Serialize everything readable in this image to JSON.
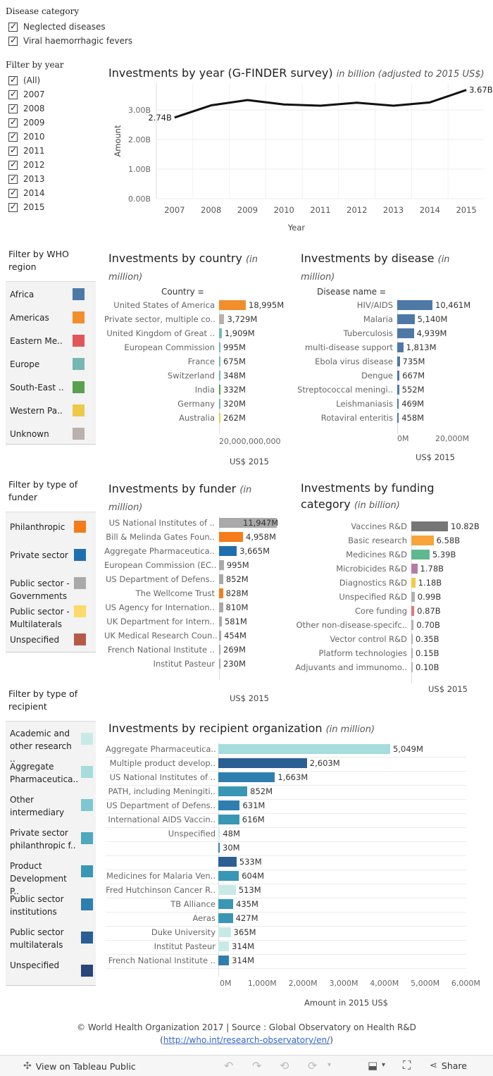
{
  "filters": {
    "disease_category": {
      "title": "Disease category",
      "items": [
        "Neglected diseases",
        "Viral haemorrhagic fevers"
      ]
    },
    "year": {
      "title": "Filter by year",
      "items": [
        "(All)",
        "2007",
        "2008",
        "2009",
        "2010",
        "2011",
        "2012",
        "2013",
        "2014",
        "2015"
      ]
    },
    "who_region": {
      "title": "Filter by WHO region",
      "items": [
        {
          "label": "Africa",
          "color": "#4e79a7"
        },
        {
          "label": "Americas",
          "color": "#f28e2b"
        },
        {
          "label": "Eastern Me..",
          "color": "#e15759"
        },
        {
          "label": "Europe",
          "color": "#76b7b2"
        },
        {
          "label": "South-East ..",
          "color": "#59a14f"
        },
        {
          "label": "Western Pa..",
          "color": "#edc948"
        },
        {
          "label": "Unknown",
          "color": "#bab0ac"
        }
      ]
    },
    "funder_type": {
      "title": "Filter by type of funder",
      "items": [
        {
          "label": "Philanthropic",
          "color": "#f47c1a"
        },
        {
          "label": "Private sector",
          "color": "#1f6fad"
        },
        {
          "label": "Public sector - Governments",
          "color": "#a9a9a9"
        },
        {
          "label": "Public sector - Multilaterals",
          "color": "#fbd96a"
        },
        {
          "label": "Unspecified",
          "color": "#b55a47"
        }
      ]
    },
    "recipient_type": {
      "title": "Filter by type of recipient",
      "items": [
        {
          "label": "Academic and other research ..",
          "color": "#c8eae6"
        },
        {
          "label": "Aggregate Pharmaceutica..",
          "color": "#a6dcdc"
        },
        {
          "label": "Other intermediary",
          "color": "#7fc6d0"
        },
        {
          "label": "Private sector philanthropic f..",
          "color": "#4fa8be"
        },
        {
          "label": "Product Development P..",
          "color": "#3a96b5"
        },
        {
          "label": "Public sector institutions",
          "color": "#2f7fae"
        },
        {
          "label": "Public sector multilaterals",
          "color": "#2a5f95"
        },
        {
          "label": "Unspecified",
          "color": "#28467a"
        }
      ]
    }
  },
  "charts": {
    "by_year": {
      "title": "Investments by year (G-FINDER survey)",
      "subtitle": "in billion (adjusted to 2015 US$)",
      "first_label": "2.74B",
      "last_label": "3.67B",
      "yticks": [
        "0.00B",
        "1.00B",
        "2.00B",
        "3.00B"
      ],
      "ylabel": "Amount",
      "xlabel": "Year"
    },
    "by_country": {
      "title": "Investments by country",
      "subtitle": "(in million)",
      "header": "Country",
      "axis_tick": "20,000,000,000",
      "axis_label": "US$ 2015"
    },
    "by_disease": {
      "title": "Investments by disease",
      "subtitle": "(in million)",
      "header": "Disease name",
      "axis_ticks": [
        "0M",
        "20,000M"
      ],
      "axis_label": "US$ 2015"
    },
    "by_funder": {
      "title": "Investments by funder",
      "subtitle": "(in million)",
      "axis_label": "US$ 2015"
    },
    "by_funding_category": {
      "title": "Investments by funding category",
      "subtitle": "(in billion)",
      "axis_label": "US$ 2015"
    },
    "by_recipient": {
      "title": "Investments by recipient organization",
      "subtitle": "(in million)",
      "axis_ticks": [
        "0M",
        "1,000M",
        "2,000M",
        "3,000M",
        "4,000M",
        "5,000M",
        "6,000M"
      ],
      "axis_label": "Amount in 2015 US$"
    }
  },
  "chart_data": [
    {
      "type": "line",
      "title": "Investments by year (G-FINDER survey)",
      "xlabel": "Year",
      "ylabel": "Amount",
      "x": [
        "2007",
        "2008",
        "2009",
        "2010",
        "2011",
        "2012",
        "2013",
        "2014",
        "2015"
      ],
      "values": [
        2.74,
        3.15,
        3.33,
        3.18,
        3.14,
        3.24,
        3.14,
        3.25,
        3.67
      ],
      "ylim": [
        0,
        3.9
      ]
    },
    {
      "type": "bar",
      "title": "Investments by country",
      "categories": [
        "United States of America",
        "Private sector, multiple co..",
        "United Kingdom of Great ..",
        "European Commission",
        "France",
        "Switzerland",
        "India",
        "Germany",
        "Australia"
      ],
      "values": [
        18995,
        3729,
        1909,
        995,
        675,
        348,
        332,
        320,
        262
      ],
      "labels": [
        "18,995M",
        "3,729M",
        "1,909M",
        "995M",
        "675M",
        "348M",
        "332M",
        "320M",
        "262M"
      ],
      "colors": [
        "#f28e2b",
        "#bab0ac",
        "#76b7b2",
        "#76b7b2",
        "#76b7b2",
        "#76b7b2",
        "#59a14f",
        "#76b7b2",
        "#edc948"
      ]
    },
    {
      "type": "bar",
      "title": "Investments by disease",
      "categories": [
        "HIV/AIDS",
        "Malaria",
        "Tuberculosis",
        "multi-disease support",
        "Ebola virus disease",
        "Dengue",
        "Streptococcal meningi..",
        "Leishmaniasis",
        "Rotaviral enteritis"
      ],
      "values": [
        10461,
        5140,
        4939,
        1813,
        735,
        667,
        552,
        469,
        458
      ],
      "labels": [
        "10,461M",
        "5,140M",
        "4,939M",
        "1,813M",
        "735M",
        "667M",
        "552M",
        "469M",
        "458M"
      ]
    },
    {
      "type": "bar",
      "title": "Investments by funder",
      "categories": [
        "US National Institutes of ..",
        "Bill & Melinda Gates Foun..",
        "Aggregate Pharmaceutica..",
        "European Commission (EC..",
        "US Department of Defens..",
        "The Wellcome Trust",
        "US Agency for Internation..",
        "UK Department for Intern..",
        "UK Medical Research Coun..",
        "French National Institute ..",
        "Institut Pasteur"
      ],
      "values": [
        11947,
        4958,
        3665,
        995,
        852,
        828,
        810,
        581,
        454,
        269,
        230
      ],
      "labels": [
        "11,947M",
        "4,958M",
        "3,665M",
        "995M",
        "852M",
        "828M",
        "810M",
        "581M",
        "454M",
        "269M",
        "230M"
      ],
      "colors": [
        "#a9a9a9",
        "#f47c1a",
        "#1f6fad",
        "#a9a9a9",
        "#a9a9a9",
        "#f47c1a",
        "#a9a9a9",
        "#a9a9a9",
        "#a9a9a9",
        "#a9a9a9",
        "#a9a9a9"
      ]
    },
    {
      "type": "bar",
      "title": "Investments by funding category",
      "categories": [
        "Vaccines R&D",
        "Basic research",
        "Medicines R&D",
        "Microbicides R&D",
        "Diagnostics R&D",
        "Unspecified R&D",
        "Core funding",
        "Other non-disease-specifc..",
        "Vector control R&D",
        "Platform technologies",
        "Adjuvants and immunomo.."
      ],
      "values": [
        10.82,
        6.58,
        5.39,
        1.78,
        1.18,
        0.99,
        0.87,
        0.7,
        0.35,
        0.15,
        0.1
      ],
      "labels": [
        "10.82B",
        "6.58B",
        "5.39B",
        "1.78B",
        "1.18B",
        "0.99B",
        "0.87B",
        "0.70B",
        "0.35B",
        "0.15B",
        "0.10B"
      ],
      "colors": [
        "#767676",
        "#f9a43a",
        "#5fb88f",
        "#b77aa6",
        "#f3c93f",
        "#b0b0b0",
        "#e47478",
        "#b0b0b0",
        "#b0b0b0",
        "#b0b0b0",
        "#b0b0b0"
      ]
    },
    {
      "type": "bar",
      "title": "Investments by recipient organization",
      "xlabel": "Amount in 2015 US$",
      "categories": [
        "Aggregate Pharmaceutica..",
        "Multiple product develop..",
        "US National Institutes of ..",
        "PATH, including Meningiti..",
        "US Department of Defens..",
        "International AIDS Vaccin..",
        "Unspecified",
        "",
        "",
        "Medicines for Malaria Ven..",
        "Fred Hutchinson Cancer R..",
        "TB Alliance",
        "Aeras",
        "Duke University",
        "Institut Pasteur",
        "French National Institute .."
      ],
      "values": [
        5049,
        2603,
        1663,
        852,
        631,
        616,
        48,
        30,
        533,
        604,
        513,
        435,
        427,
        365,
        314,
        314
      ],
      "labels": [
        "5,049M",
        "2,603M",
        "1,663M",
        "852M",
        "631M",
        "616M",
        "48M",
        "30M",
        "533M",
        "604M",
        "513M",
        "435M",
        "427M",
        "365M",
        "314M",
        "314M"
      ],
      "colors": [
        "#a6dcdc",
        "#2a5f95",
        "#2f7fae",
        "#3a96b5",
        "#2f7fae",
        "#3a96b5",
        "#c8eae6",
        "#2f7fae",
        "#2a5f95",
        "#3a96b5",
        "#c8eae6",
        "#3a96b5",
        "#3a96b5",
        "#c8eae6",
        "#c8eae6",
        "#2f7fae"
      ],
      "xlim": [
        0,
        6000
      ]
    }
  ],
  "footer": {
    "line1": "© World Health Organization 2017 | Source : Global Observatory on Health R&D",
    "open": "(",
    "link": "http://who.int/research-observatory/en/",
    "close": ")"
  },
  "toolbar": {
    "view_label": "View on Tableau Public",
    "share_label": "Share"
  }
}
